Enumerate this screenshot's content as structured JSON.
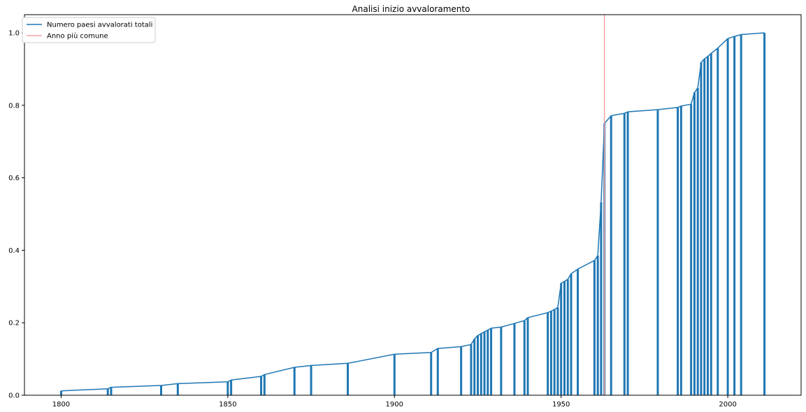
{
  "chart_data": {
    "type": "line",
    "title": "Analisi inizio avvaloramento",
    "xlabel": "",
    "ylabel": "",
    "xlim": [
      1789,
      2022
    ],
    "ylim": [
      0,
      1.05
    ],
    "xticks": [
      1800,
      1850,
      1900,
      1950,
      2000
    ],
    "yticks": [
      0.0,
      0.2,
      0.4,
      0.6,
      0.8,
      1.0
    ],
    "grid": false,
    "legend_position": "top-left",
    "colors": {
      "series": "#1f77b4",
      "mode": "#f4a4a4"
    },
    "series": [
      {
        "name": "Numero paesi avvalorati totali",
        "x": [
          1800,
          1814,
          1815,
          1830,
          1835,
          1850,
          1851,
          1860,
          1861,
          1870,
          1875,
          1886,
          1900,
          1911,
          1913,
          1920,
          1923,
          1924,
          1925,
          1926,
          1927,
          1928,
          1929,
          1932,
          1936,
          1939,
          1940,
          1946,
          1947,
          1948,
          1949,
          1950,
          1951,
          1952,
          1953,
          1955,
          1960,
          1961,
          1962,
          1963,
          1965,
          1969,
          1970,
          1979,
          1985,
          1986,
          1989,
          1990,
          1991,
          1992,
          1993,
          1994,
          1995,
          1997,
          2000,
          2002,
          2004,
          2011
        ],
        "values": [
          0.012,
          0.018,
          0.022,
          0.027,
          0.032,
          0.037,
          0.042,
          0.052,
          0.057,
          0.077,
          0.082,
          0.088,
          0.113,
          0.118,
          0.129,
          0.134,
          0.14,
          0.155,
          0.165,
          0.17,
          0.175,
          0.18,
          0.185,
          0.188,
          0.198,
          0.206,
          0.214,
          0.228,
          0.232,
          0.237,
          0.242,
          0.309,
          0.314,
          0.32,
          0.335,
          0.348,
          0.372,
          0.385,
          0.532,
          0.75,
          0.771,
          0.778,
          0.782,
          0.788,
          0.794,
          0.798,
          0.803,
          0.835,
          0.848,
          0.918,
          0.928,
          0.935,
          0.943,
          0.958,
          0.984,
          0.99,
          0.995,
          1.0
        ]
      },
      {
        "name": "Anno più comune",
        "x_value": 1963
      }
    ]
  }
}
